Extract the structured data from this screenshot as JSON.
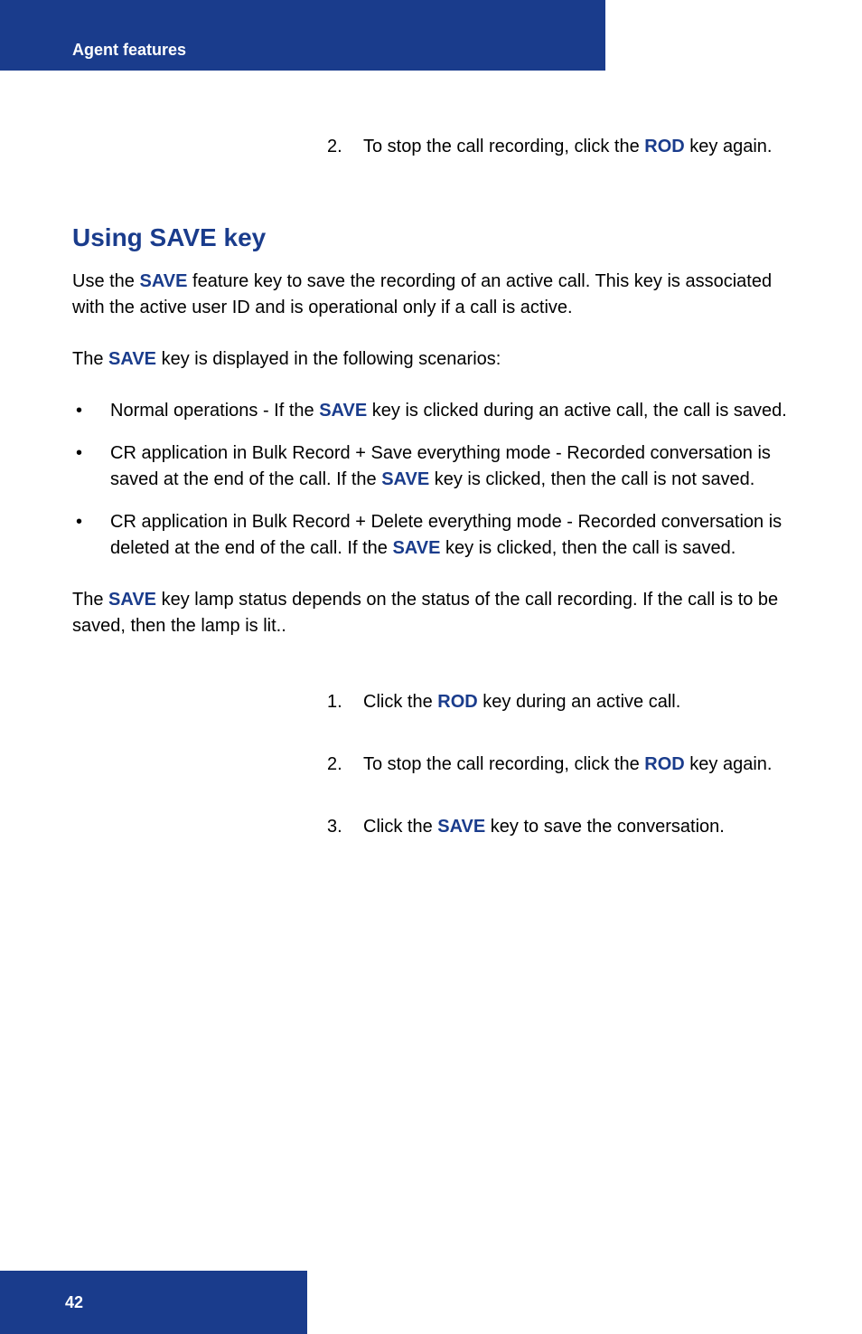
{
  "header": {
    "title": "Agent features"
  },
  "topSteps": [
    {
      "num": "2.",
      "before": "To stop the call recording, click the  ",
      "key": "ROD",
      "after": " key again."
    }
  ],
  "section": {
    "heading": "Using SAVE key",
    "intro": {
      "before": "Use the ",
      "key": "SAVE",
      "after": " feature key to save the recording of an active call. This key is associated with the active user ID and is operational only if a call is active."
    },
    "scenarioIntro": {
      "before": "The ",
      "key": "SAVE",
      "after": " key is displayed in the following scenarios:"
    },
    "bullets": [
      {
        "before": "Normal operations - If the ",
        "key": "SAVE",
        "after": " key is clicked during an active call, the call is saved."
      },
      {
        "before": "CR application in Bulk Record + Save everything mode - Recorded conversation is saved at the end of the call. If the ",
        "key": "SAVE",
        "after": " key is clicked, then the call is not saved."
      },
      {
        "before": "CR application in Bulk Record + Delete everything mode - Recorded conversation is deleted at the end of the call. If the ",
        "key": "SAVE",
        "after": " key is clicked, then the call is saved."
      }
    ],
    "lampPara": {
      "before": "The ",
      "key": "SAVE",
      "after": " key lamp status depends on the status of the call recording. If the call is to be saved, then the lamp is lit.."
    },
    "bottomSteps": [
      {
        "num": "1.",
        "before": "Click the ",
        "key": "ROD",
        "after": " key during an active call."
      },
      {
        "num": "2.",
        "before": "To stop the call recording, click the ",
        "key": "ROD",
        "after": " key again."
      },
      {
        "num": "3.",
        "before": "Click the ",
        "key": "SAVE",
        "after": " key to save the conversation."
      }
    ]
  },
  "footer": {
    "pageNum": "42"
  },
  "colors": {
    "primary": "#1a3c8c",
    "background": "#ffffff",
    "headerText": "#ffffff"
  }
}
